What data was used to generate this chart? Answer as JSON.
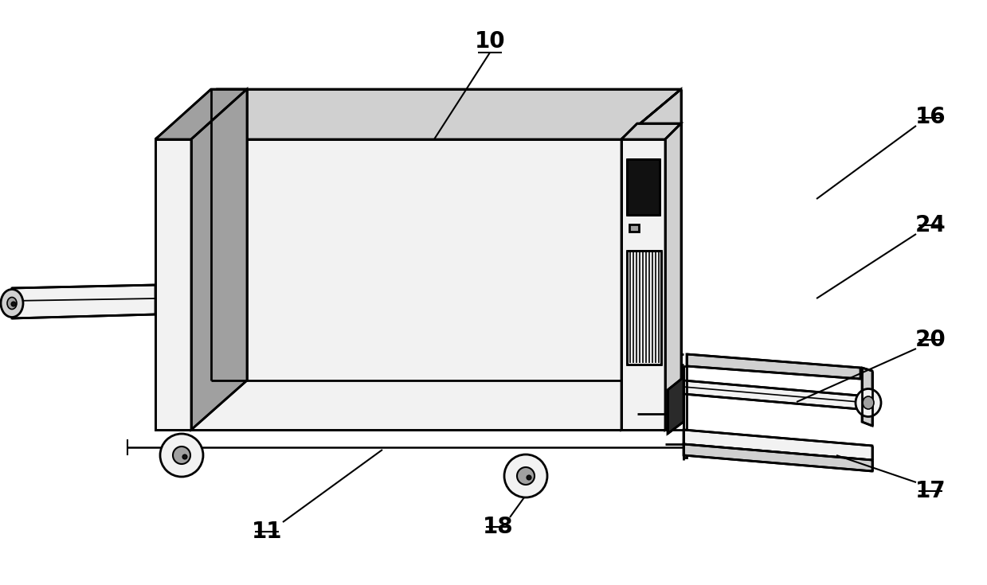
{
  "bg_color": "#ffffff",
  "lc": "#000000",
  "fill_white": "#ffffff",
  "fill_light": "#f2f2f2",
  "fill_mid": "#d0d0d0",
  "fill_dark": "#a0a0a0",
  "fill_black": "#111111"
}
